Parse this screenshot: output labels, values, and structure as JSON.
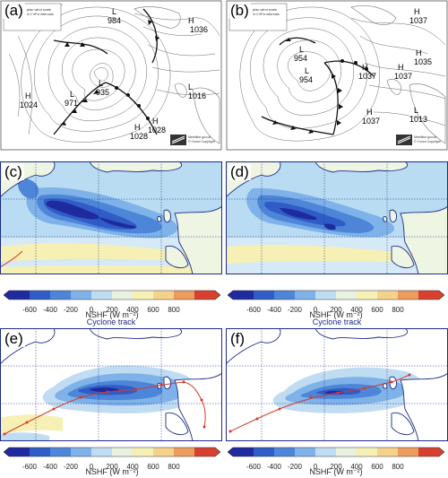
{
  "panels": [
    {
      "label": "(a)"
    },
    {
      "label": "(b)"
    },
    {
      "label": "(c)"
    },
    {
      "label": "(d)"
    },
    {
      "label": "(e)"
    },
    {
      "label": "(f)"
    }
  ],
  "synoptic_a": {
    "box_title": "plac wind scale",
    "box_sub": "4.0 hPa intervals",
    "credit1": "Metoffice.gov.uk",
    "credit2": "© Crown Copyright",
    "pressure_labels": [
      {
        "letter": "L",
        "value": "984"
      },
      {
        "letter": "H",
        "value": "1036"
      },
      {
        "letter": "L",
        "value": "935"
      },
      {
        "letter": "L",
        "value": "971"
      },
      {
        "letter": "H",
        "value": "1024"
      },
      {
        "letter": "H",
        "value": "1028"
      },
      {
        "letter": "H",
        "value": "1028"
      },
      {
        "letter": "L",
        "value": "1016"
      }
    ]
  },
  "synoptic_b": {
    "box_title": "plac wind scale",
    "box_sub": "4.0 hPa intervals",
    "credit1": "Metoffice.gov.uk",
    "credit2": "© Crown Copyright",
    "pressure_labels": [
      {
        "letter": "H",
        "value": "1037"
      },
      {
        "letter": "L",
        "value": "954"
      },
      {
        "letter": "L",
        "value": "954"
      },
      {
        "letter": "H",
        "value": "1037"
      },
      {
        "letter": "H",
        "value": "1035"
      },
      {
        "letter": "H",
        "value": "1037"
      },
      {
        "letter": "H",
        "value": "1037"
      },
      {
        "letter": "L",
        "value": "1013"
      }
    ]
  },
  "colorbar": {
    "ticks": [
      "-600",
      "-400",
      "-200",
      "0",
      "200",
      "400",
      "600",
      "800"
    ],
    "unit": "NSHF (W m⁻²)",
    "colors": [
      "#1f2a9e",
      "#2f5cc6",
      "#4d86d8",
      "#7eb2e8",
      "#bfdcf2",
      "#e8f2df",
      "#f7f0b4",
      "#f4d28c",
      "#ec9c5c",
      "#d7402f"
    ]
  },
  "track_title": "Cyclone track",
  "colors": {
    "map_line": "#1d2a88",
    "track": "#d43a2c",
    "ocean_bg": "#b9dcf2",
    "ocean_light": "#d5eaf6",
    "neutral": "#eef5e2",
    "warm": "#f7f0b4",
    "neg1": "#7eb2e8",
    "neg2": "#4d86d8",
    "neg3": "#2f5cc6",
    "neg4": "#1f2a9e"
  }
}
